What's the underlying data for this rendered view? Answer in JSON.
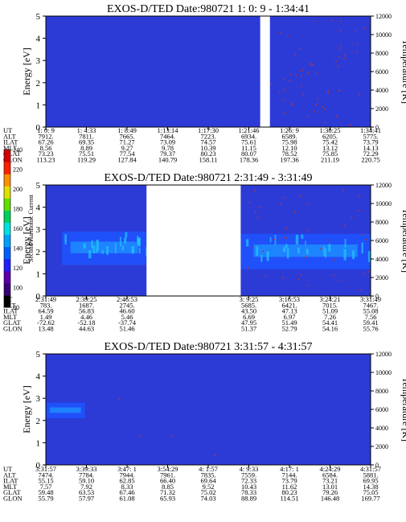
{
  "chart_data": {
    "type": "heatmap",
    "colorbar": {
      "label": "Second Harmonic Current",
      "ticks": [
        "80",
        "100",
        "120",
        "140",
        "160",
        "180",
        "200",
        "220",
        "240"
      ],
      "colors": [
        "#000000",
        "#3a0078",
        "#5a00a8",
        "#2020ff",
        "#0060ff",
        "#00a0ff",
        "#00e0e0",
        "#00d060",
        "#60e000",
        "#e0e000",
        "#ff9000",
        "#ff2000",
        "#d00000"
      ]
    },
    "y_left_label": "Energy [eV]",
    "y_left_ticks": [
      "0",
      "1",
      "2",
      "3",
      "4",
      "5"
    ],
    "y_left_range": [
      0,
      5
    ],
    "y_right_label": "Temperature [K]",
    "y_right_ticks": [
      "0",
      "2000",
      "4000",
      "6000",
      "8000",
      "10000",
      "12000"
    ],
    "y_right_range": [
      0,
      12000
    ],
    "row_labels": [
      "UT",
      "ALT",
      "ILAT",
      "MLT",
      "GLAT",
      "GLON"
    ],
    "panels": [
      {
        "title": "EXOS-D/TED   Date:980721   1: 0: 9 - 1:34:41",
        "columns": [
          [
            "1: 0: 9",
            "7912.",
            "67.26",
            "8.56",
            "73.23",
            "113.23"
          ],
          [
            "1: 4:33",
            "7811.",
            "69.35",
            "8.89",
            "75.51",
            "119.29"
          ],
          [
            "1: 8:49",
            "7665.",
            "71.27",
            "9.27",
            "77.54",
            "127.84"
          ],
          [
            "1:13:14",
            "7464.",
            "73.09",
            "9.78",
            "79.37",
            "140.79"
          ],
          [
            "1:17:30",
            "7223.",
            "74.57",
            "10.39",
            "80.23",
            "158.11"
          ],
          [
            "1:21:46",
            "6934.",
            "75.61",
            "11.15",
            "80.07",
            "178.36"
          ],
          [
            "1:26: 9",
            "6589.",
            "75.98",
            "12.10",
            "78.52",
            "197.36"
          ],
          [
            "1:30:25",
            "6205.",
            "75.42",
            "13.12",
            "75.85",
            "211.19"
          ],
          [
            "1:34:41",
            "5775.",
            "73.79",
            "14.13",
            "72.29",
            "220.75"
          ]
        ],
        "gaps": [
          [
            0.66,
            0.69
          ]
        ],
        "energy_bands": []
      },
      {
        "title": "EXOS-D/TED   Date:980721   2:31:49 - 3:31:49",
        "columns": [
          [
            "2:31:49",
            "783.",
            "64.59",
            "1.49",
            "-72.62",
            "13.48"
          ],
          [
            "2:39:25",
            "1687.",
            "56.83",
            "4.46",
            "-52.18",
            "44.63"
          ],
          [
            "2:46:53",
            "2745.",
            "46.60",
            "5.46",
            "-37.74",
            "51.46"
          ],
          [
            "3: 9:25",
            "5685.",
            "43.50",
            "6.69",
            "47.95",
            "51.37"
          ],
          [
            "3:16:53",
            "6421.",
            "47.13",
            "6.97",
            "51.49",
            "52.79"
          ],
          [
            "3:24:21",
            "7015.",
            "51.09",
            "7.26",
            "54.41",
            "54.16"
          ],
          [
            "3:31:49",
            "7467.",
            "55.08",
            "7.56",
            "59.41",
            "55.76"
          ]
        ],
        "column_positions": [
          0.0,
          0.125,
          0.25,
          0.625,
          0.75,
          0.875,
          1.0
        ],
        "gaps": [
          [
            0.31,
            0.6
          ]
        ],
        "energy_bands": [
          {
            "x": [
              0.05,
              0.31
            ],
            "e": [
              1.4,
              2.9
            ]
          },
          {
            "x": [
              0.6,
              1.0
            ],
            "e": [
              1.2,
              2.8
            ]
          }
        ]
      },
      {
        "title": "EXOS-D/TED   Date:980721   3:31:57 - 4:31:57",
        "columns": [
          [
            "3:31:57",
            "7474.",
            "55.15",
            "7.57",
            "59.48",
            "55.79"
          ],
          [
            "3:39:33",
            "7784.",
            "59.10",
            "7.92",
            "63.53",
            "57.97"
          ],
          [
            "3:47: 1",
            "7944.",
            "62.85",
            "8.33",
            "67.46",
            "61.08"
          ],
          [
            "3:54:29",
            "7961.",
            "66.40",
            "8.85",
            "71.32",
            "65.93"
          ],
          [
            "4: 1:57",
            "7835.",
            "69.64",
            "9.52",
            "75.02",
            "74.03"
          ],
          [
            "4: 9:33",
            "7559.",
            "72.33",
            "10.43",
            "78.33",
            "88.89"
          ],
          [
            "4:17: 1",
            "7144.",
            "73.79",
            "11.62",
            "80.23",
            "114.51"
          ],
          [
            "4:24:29",
            "6584.",
            "73.21",
            "13.01",
            "79.26",
            "146.48"
          ],
          [
            "4:31:57",
            "5881.",
            "69.95",
            "14.38",
            "75.05",
            "169.77"
          ]
        ],
        "gaps": [],
        "energy_bands": [
          {
            "x": [
              0.0,
              0.12
            ],
            "e": [
              2.1,
              2.8
            ]
          }
        ]
      }
    ]
  }
}
